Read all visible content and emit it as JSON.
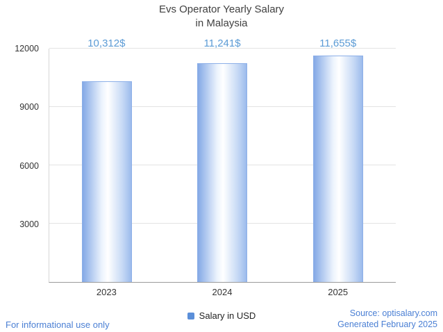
{
  "title": {
    "line1": "Evs Operator Yearly Salary",
    "line2": "in Malaysia"
  },
  "legend": {
    "label": "Salary in USD"
  },
  "footer": {
    "note": "For informational use only",
    "source": "Source: optisalary.com",
    "generated": "Generated February 2025"
  },
  "colors": {
    "accent": "#5B9BD5",
    "title": "#404040",
    "text": "#333333",
    "footer": "#4A7FD4",
    "legend_marker": "#5B8FD9",
    "bar_left": "#84A9E6",
    "bar_mid": "#FFFFFF",
    "bar_right": "#9CBBEC",
    "bar_border": "#8CAFE8",
    "grid": "#E3E3E3",
    "axis": "#9A9A9A"
  },
  "chart_data": {
    "type": "bar",
    "title": "Evs Operator Yearly Salary in Malaysia",
    "categories": [
      "2023",
      "2024",
      "2025"
    ],
    "values": [
      10312,
      11241,
      11655
    ],
    "value_labels": [
      "10,312$",
      "11,241$",
      "11,655$"
    ],
    "series": [
      {
        "name": "Salary in USD",
        "values": [
          10312,
          11241,
          11655
        ]
      }
    ],
    "xlabel": "",
    "ylabel": "",
    "ylim": [
      0,
      12000
    ],
    "yticks": [
      3000,
      6000,
      9000,
      12000
    ],
    "grid": true,
    "legend_position": "bottom"
  }
}
